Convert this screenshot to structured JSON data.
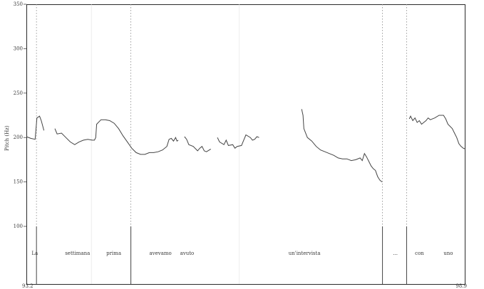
{
  "chart_data": {
    "type": "line",
    "title": "",
    "ylabel": "Pitch (Hz)",
    "xlabel": "",
    "ylim": [
      100,
      350
    ],
    "xlim": [
      0,
      1
    ],
    "y_ticks": [
      150,
      200,
      250,
      300,
      350
    ],
    "y_bottom_label": "100",
    "x_start_label": "93.2",
    "x_end_label": "98.9",
    "words": [
      {
        "label": "La",
        "x": 0.012
      },
      {
        "label": "settimana",
        "x": 0.088
      },
      {
        "label": "prima",
        "x": 0.182
      },
      {
        "label": "avevamo",
        "x": 0.28
      },
      {
        "label": "avuto",
        "x": 0.35
      },
      {
        "label": "un'intervista",
        "x": 0.597
      },
      {
        "label": "...",
        "x": 0.835
      },
      {
        "label": "con",
        "x": 0.885
      },
      {
        "label": "uno",
        "x": 0.95
      }
    ],
    "boundaries_solid": [
      0.023,
      0.238,
      0.811,
      0.866
    ],
    "boundaries_dotted": [
      0.023,
      0.238,
      0.811,
      0.866
    ],
    "series": [
      {
        "points": [
          [
            0.0,
            201
          ],
          [
            0.01,
            199
          ],
          [
            0.02,
            198
          ],
          [
            0.024,
            222
          ],
          [
            0.03,
            224
          ],
          [
            0.034,
            219
          ],
          [
            0.04,
            208
          ]
        ]
      },
      {
        "points": [
          [
            0.065,
            210
          ],
          [
            0.07,
            204
          ],
          [
            0.08,
            205
          ],
          [
            0.09,
            200
          ],
          [
            0.1,
            195
          ],
          [
            0.11,
            192
          ],
          [
            0.12,
            195
          ],
          [
            0.13,
            197
          ],
          [
            0.14,
            198
          ],
          [
            0.15,
            197
          ],
          [
            0.155,
            197
          ],
          [
            0.158,
            200
          ],
          [
            0.16,
            215
          ],
          [
            0.17,
            220
          ],
          [
            0.18,
            220
          ],
          [
            0.19,
            219
          ],
          [
            0.2,
            216
          ],
          [
            0.21,
            210
          ],
          [
            0.22,
            202
          ],
          [
            0.23,
            195
          ],
          [
            0.24,
            188
          ],
          [
            0.25,
            183
          ],
          [
            0.26,
            181
          ],
          [
            0.27,
            181
          ],
          [
            0.28,
            183
          ],
          [
            0.29,
            183
          ],
          [
            0.3,
            184
          ],
          [
            0.31,
            186
          ],
          [
            0.32,
            190
          ],
          [
            0.325,
            198
          ],
          [
            0.33,
            199
          ],
          [
            0.335,
            196
          ],
          [
            0.34,
            200
          ],
          [
            0.343,
            196
          ],
          [
            0.346,
            197
          ]
        ]
      },
      {
        "points": [
          [
            0.36,
            201
          ],
          [
            0.365,
            198
          ],
          [
            0.37,
            192
          ],
          [
            0.38,
            190
          ],
          [
            0.39,
            185
          ],
          [
            0.395,
            188
          ],
          [
            0.4,
            190
          ],
          [
            0.405,
            185
          ],
          [
            0.41,
            184
          ],
          [
            0.42,
            187
          ]
        ]
      },
      {
        "points": [
          [
            0.435,
            200
          ],
          [
            0.44,
            195
          ],
          [
            0.45,
            192
          ],
          [
            0.455,
            197
          ],
          [
            0.46,
            191
          ],
          [
            0.47,
            192
          ],
          [
            0.475,
            188
          ],
          [
            0.48,
            190
          ],
          [
            0.49,
            191
          ],
          [
            0.495,
            197
          ],
          [
            0.5,
            203
          ],
          [
            0.51,
            200
          ],
          [
            0.515,
            197
          ],
          [
            0.52,
            198
          ],
          [
            0.525,
            201
          ],
          [
            0.53,
            200
          ]
        ]
      },
      {
        "points": [
          [
            0.627,
            232
          ],
          [
            0.63,
            225
          ],
          [
            0.632,
            210
          ],
          [
            0.64,
            200
          ],
          [
            0.65,
            196
          ],
          [
            0.66,
            190
          ],
          [
            0.67,
            186
          ],
          [
            0.68,
            184
          ],
          [
            0.69,
            182
          ],
          [
            0.7,
            180
          ],
          [
            0.71,
            177
          ],
          [
            0.72,
            176
          ],
          [
            0.73,
            176
          ],
          [
            0.74,
            174
          ],
          [
            0.75,
            175
          ],
          [
            0.76,
            177
          ],
          [
            0.765,
            174
          ],
          [
            0.77,
            182
          ],
          [
            0.775,
            178
          ],
          [
            0.78,
            173
          ],
          [
            0.785,
            168
          ],
          [
            0.79,
            165
          ],
          [
            0.795,
            163
          ],
          [
            0.8,
            156
          ],
          [
            0.805,
            152
          ],
          [
            0.81,
            150
          ]
        ]
      },
      {
        "points": [
          [
            0.872,
            221
          ],
          [
            0.875,
            224
          ],
          [
            0.88,
            219
          ],
          [
            0.885,
            222
          ],
          [
            0.89,
            217
          ],
          [
            0.895,
            219
          ],
          [
            0.9,
            215
          ],
          [
            0.905,
            217
          ],
          [
            0.91,
            219
          ],
          [
            0.915,
            222
          ],
          [
            0.92,
            220
          ],
          [
            0.93,
            222
          ],
          [
            0.94,
            225
          ],
          [
            0.95,
            225
          ],
          [
            0.955,
            221
          ],
          [
            0.96,
            215
          ],
          [
            0.97,
            210
          ],
          [
            0.975,
            205
          ],
          [
            0.98,
            200
          ],
          [
            0.985,
            193
          ],
          [
            0.99,
            190
          ],
          [
            0.995,
            188
          ],
          [
            1.0,
            187
          ]
        ]
      }
    ]
  }
}
